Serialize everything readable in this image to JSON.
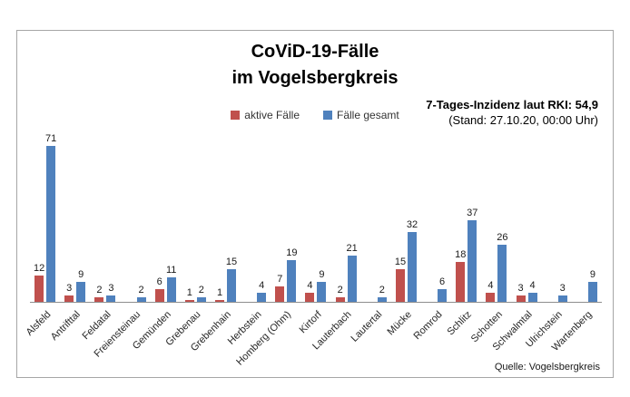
{
  "header": {
    "title_line1": "CoViD-19-Fälle",
    "title_line2": "im Vogelsbergkreis",
    "annotation_line1": "7-Tages-Inzidenz laut RKI: 54,9",
    "annotation_line2": "(Stand: 27.10.20, 00:00 Uhr)"
  },
  "footer": {
    "source": "Quelle: Vogelsbergkreis"
  },
  "chart_data": {
    "type": "bar",
    "title": "CoViD-19-Fälle im Vogelsbergkreis",
    "categories": [
      "Alsfeld",
      "Antrifttal",
      "Feldatal",
      "Freiensteinau",
      "Gemünden",
      "Grebenau",
      "Grebenhain",
      "Herbstein",
      "Homberg (Ohm)",
      "Kirtorf",
      "Lauterbach",
      "Lautertal",
      "Mücke",
      "Romrod",
      "Schlitz",
      "Schotten",
      "Schwalmtal",
      "Ulrichstein",
      "Wartenberg"
    ],
    "series": [
      {
        "name": "aktive Fälle",
        "color": "#C0504D",
        "values": [
          12,
          3,
          2,
          null,
          6,
          1,
          1,
          null,
          7,
          4,
          2,
          null,
          15,
          null,
          18,
          4,
          3,
          null,
          null
        ]
      },
      {
        "name": "Fälle gesamt",
        "color": "#4F81BD",
        "values": [
          71,
          9,
          3,
          2,
          11,
          2,
          15,
          4,
          19,
          9,
          21,
          2,
          32,
          6,
          37,
          26,
          4,
          3,
          9
        ]
      }
    ],
    "ylim": [
      0,
      75
    ],
    "grid": false,
    "data_labels": true,
    "legend_position": "top-center",
    "axis_color": "#8e8e8e"
  }
}
